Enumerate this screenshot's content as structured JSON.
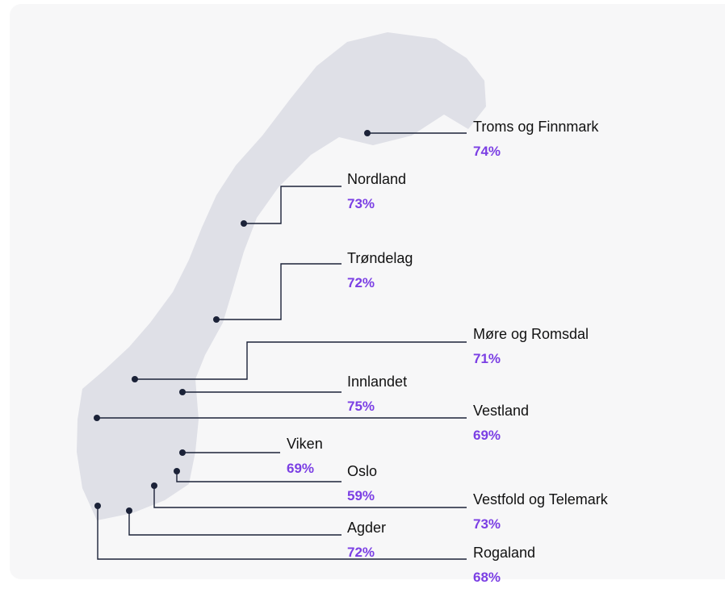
{
  "regions": [
    {
      "name": "Troms og Finnmark",
      "value": "74%"
    },
    {
      "name": "Nordland",
      "value": "73%"
    },
    {
      "name": "Trøndelag",
      "value": "72%"
    },
    {
      "name": "Møre og Romsdal",
      "value": "71%"
    },
    {
      "name": "Innlandet",
      "value": "75%"
    },
    {
      "name": "Vestland",
      "value": "69%"
    },
    {
      "name": "Viken",
      "value": "69%"
    },
    {
      "name": "Oslo",
      "value": "59%"
    },
    {
      "name": "Vestfold og Telemark",
      "value": "73%"
    },
    {
      "name": "Agder",
      "value": "72%"
    },
    {
      "name": "Rogaland",
      "value": "68%"
    }
  ]
}
